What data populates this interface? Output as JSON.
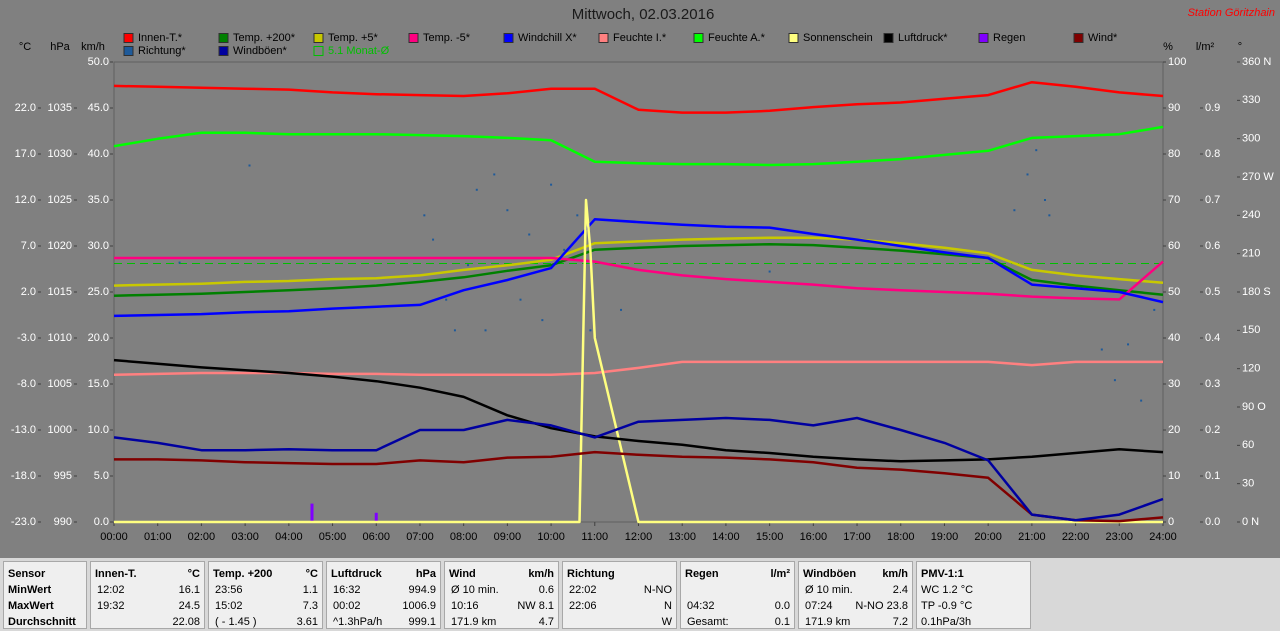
{
  "chart_data": {
    "type": "line",
    "title": "Mittwoch, 02.03.2016",
    "station": "Station Göritzhain",
    "xlim": [
      0,
      24
    ],
    "xticks": [
      {
        "value": 0,
        "label": "00:00"
      },
      {
        "value": 1,
        "label": "01:00"
      },
      {
        "value": 2,
        "label": "02:00"
      },
      {
        "value": 3,
        "label": "03:00"
      },
      {
        "value": 4,
        "label": "04:00"
      },
      {
        "value": 5,
        "label": "05:00"
      },
      {
        "value": 6,
        "label": "06:00"
      },
      {
        "value": 7,
        "label": "07:00"
      },
      {
        "value": 8,
        "label": "08:00"
      },
      {
        "value": 9,
        "label": "09:00"
      },
      {
        "value": 10,
        "label": "10:00"
      },
      {
        "value": 11,
        "label": "11:00"
      },
      {
        "value": 12,
        "label": "12:00"
      },
      {
        "value": 13,
        "label": "13:00"
      },
      {
        "value": 14,
        "label": "14:00"
      },
      {
        "value": 15,
        "label": "15:00"
      },
      {
        "value": 16,
        "label": "16:00"
      },
      {
        "value": 17,
        "label": "17:00"
      },
      {
        "value": 18,
        "label": "18:00"
      },
      {
        "value": 19,
        "label": "19:00"
      },
      {
        "value": 20,
        "label": "20:00"
      },
      {
        "value": 21,
        "label": "21:00"
      },
      {
        "value": 22,
        "label": "22:00"
      },
      {
        "value": 23,
        "label": "23:00"
      },
      {
        "value": 24,
        "label": "24:00"
      }
    ],
    "axes": {
      "temp": {
        "label": "°C",
        "ylim": [
          -23,
          27
        ],
        "yticks": [
          {
            "value": -23,
            "label": "-23.0"
          },
          {
            "value": -18,
            "label": "-18.0"
          },
          {
            "value": -13,
            "label": "-13.0"
          },
          {
            "value": -8,
            "label": "-8.0"
          },
          {
            "value": -3,
            "label": "-3.0"
          },
          {
            "value": 2,
            "label": "2.0"
          },
          {
            "value": 7,
            "label": "7.0"
          },
          {
            "value": 12,
            "label": "12.0"
          },
          {
            "value": 17,
            "label": "17.0"
          },
          {
            "value": 22,
            "label": "22.0"
          }
        ]
      },
      "hpa": {
        "label": "hPa",
        "ylim": [
          990,
          1040
        ],
        "yticks": [
          990,
          995,
          1000,
          1005,
          1010,
          1015,
          1020,
          1025,
          1030,
          1035
        ]
      },
      "kmh": {
        "label": "km/h",
        "ylim": [
          0,
          50
        ],
        "yticks": [
          {
            "value": 0,
            "label": "0.0"
          },
          {
            "value": 5,
            "label": "5.0"
          },
          {
            "value": 10,
            "label": "10.0"
          },
          {
            "value": 15,
            "label": "15.0"
          },
          {
            "value": 20,
            "label": "20.0"
          },
          {
            "value": 25,
            "label": "25.0"
          },
          {
            "value": 30,
            "label": "30.0"
          },
          {
            "value": 35,
            "label": "35.0"
          },
          {
            "value": 40,
            "label": "40.0"
          },
          {
            "value": 45,
            "label": "45.0"
          },
          {
            "value": 50,
            "label": "50.0"
          }
        ]
      },
      "pct": {
        "label": "%",
        "ylim": [
          0,
          100
        ],
        "yticks": [
          0,
          10,
          20,
          30,
          40,
          50,
          60,
          70,
          80,
          90,
          100
        ]
      },
      "rain": {
        "label": "l/m²",
        "ylim": [
          0,
          1
        ],
        "yticks": [
          {
            "value": 0,
            "label": "0.0"
          },
          {
            "value": 0.1,
            "label": "0.1"
          },
          {
            "value": 0.2,
            "label": "0.2"
          },
          {
            "value": 0.3,
            "label": "0.3"
          },
          {
            "value": 0.4,
            "label": "0.4"
          },
          {
            "value": 0.5,
            "label": "0.5"
          },
          {
            "value": 0.6,
            "label": "0.6"
          },
          {
            "value": 0.7,
            "label": "0.7"
          },
          {
            "value": 0.8,
            "label": "0.8"
          },
          {
            "value": 0.9,
            "label": "0.9"
          }
        ]
      },
      "deg": {
        "label": "°",
        "ylim": [
          0,
          360
        ],
        "yticks": [
          {
            "value": 0,
            "label": "0 N"
          },
          30,
          60,
          {
            "value": 90,
            "label": "90 O"
          },
          120,
          150,
          {
            "value": 180,
            "label": "180 S"
          },
          210,
          240,
          {
            "value": 270,
            "label": "270 W"
          },
          300,
          330,
          {
            "value": 360,
            "label": "360 N"
          }
        ]
      }
    },
    "x": [
      0,
      1,
      2,
      3,
      4,
      5,
      6,
      7,
      8,
      9,
      10,
      11,
      12,
      13,
      14,
      15,
      16,
      17,
      18,
      19,
      20,
      21,
      22,
      23,
      24
    ],
    "series": [
      {
        "name": "Innen-T.*",
        "color": "#ff0000",
        "axis": "temp",
        "style": "line",
        "values": [
          24.4,
          24.3,
          24.2,
          24.1,
          24.0,
          23.7,
          23.5,
          23.4,
          23.3,
          23.6,
          24.1,
          24.1,
          21.8,
          21.5,
          21.5,
          21.7,
          22.1,
          22.4,
          22.6,
          23.0,
          23.4,
          24.8,
          24.3,
          23.7,
          23.3
        ]
      },
      {
        "name": "Temp. +200*",
        "color": "#008000",
        "axis": "temp",
        "style": "line",
        "values": [
          1.6,
          1.7,
          1.8,
          2.0,
          2.2,
          2.4,
          2.7,
          3.1,
          3.6,
          4.3,
          4.9,
          6.6,
          6.8,
          7.0,
          7.1,
          7.2,
          7.1,
          6.8,
          6.5,
          6.1,
          5.7,
          3.3,
          2.7,
          2.2,
          1.7
        ]
      },
      {
        "name": "Temp. +5*",
        "color": "#c8c800",
        "axis": "temp",
        "style": "line",
        "values": [
          2.7,
          2.8,
          2.9,
          3.1,
          3.2,
          3.4,
          3.5,
          3.8,
          4.4,
          4.9,
          5.5,
          7.3,
          7.5,
          7.7,
          7.8,
          7.9,
          7.9,
          7.7,
          7.3,
          6.8,
          6.2,
          4.4,
          3.8,
          3.4,
          3.0
        ]
      },
      {
        "name": "Temp. -5*",
        "color": "#ff0080",
        "axis": "temp",
        "style": "line",
        "values": [
          5.7,
          5.7,
          5.7,
          5.7,
          5.7,
          5.7,
          5.7,
          5.7,
          5.7,
          5.7,
          5.7,
          5.3,
          4.4,
          3.8,
          3.4,
          3.1,
          2.8,
          2.4,
          2.2,
          2.0,
          1.8,
          1.5,
          1.3,
          1.2,
          5.3
        ]
      },
      {
        "name": "Windchill X*",
        "color": "#0000ff",
        "axis": "temp",
        "style": "line",
        "values": [
          -0.6,
          -0.5,
          -0.4,
          -0.2,
          -0.1,
          0.2,
          0.4,
          0.6,
          2.2,
          3.3,
          4.6,
          9.9,
          9.6,
          9.3,
          9.1,
          9.0,
          8.3,
          7.7,
          7.0,
          6.3,
          5.7,
          2.8,
          2.4,
          2.0,
          0.9
        ]
      },
      {
        "name": "Feuchte I.*",
        "color": "#ff8080",
        "axis": "pct",
        "style": "line",
        "values": [
          32.0,
          32.2,
          32.4,
          32.4,
          32.4,
          32.2,
          32.2,
          32.0,
          32.0,
          32.0,
          32.0,
          32.4,
          33.5,
          34.8,
          34.8,
          34.8,
          34.8,
          34.8,
          34.8,
          34.8,
          34.8,
          34.1,
          34.8,
          34.8,
          34.8
        ]
      },
      {
        "name": "Feuchte A.*",
        "color": "#00ff00",
        "axis": "pct",
        "style": "line",
        "values": [
          81.7,
          83.3,
          84.6,
          84.6,
          84.3,
          84.3,
          84.3,
          84.1,
          83.9,
          83.5,
          83.0,
          78.3,
          78.0,
          77.8,
          77.8,
          77.6,
          77.8,
          78.3,
          78.9,
          79.8,
          80.7,
          83.5,
          83.9,
          84.3,
          85.9
        ]
      },
      {
        "name": "Sonnenschein",
        "color": "#ffff80",
        "axis": "pct",
        "style": "line",
        "x": [
          0,
          10.65,
          10.8,
          10.9,
          11.0,
          12.0,
          24
        ],
        "values": [
          0,
          0,
          70,
          59,
          40,
          0,
          0
        ]
      },
      {
        "name": "Luftdruck*",
        "color": "#000000",
        "axis": "hpa",
        "style": "line",
        "values": [
          1007.6,
          1007.2,
          1006.8,
          1006.5,
          1006.2,
          1005.8,
          1005.3,
          1004.6,
          1003.6,
          1001.6,
          1000.2,
          999.3,
          998.8,
          998.4,
          997.8,
          997.5,
          997.1,
          996.8,
          996.6,
          996.7,
          996.8,
          997.1,
          997.5,
          997.9,
          997.6
        ]
      },
      {
        "name": "Regen",
        "color": "#8000ff",
        "axis": "rain",
        "style": "bar",
        "x": [
          4.53,
          6.0
        ],
        "values": [
          0.04,
          0.02
        ]
      },
      {
        "name": "Wind*",
        "color": "#800000",
        "axis": "kmh",
        "style": "line",
        "values": [
          6.8,
          6.8,
          6.7,
          6.5,
          6.4,
          6.3,
          6.3,
          6.7,
          6.5,
          7.0,
          7.1,
          7.6,
          7.3,
          7.1,
          7.0,
          6.8,
          6.5,
          5.9,
          5.7,
          5.3,
          4.8,
          0.8,
          0.2,
          0.1,
          0.5
        ]
      },
      {
        "name": "Richtung*",
        "color": "#1e5a9a",
        "axis": "deg",
        "style": "scatter",
        "x": [
          1.5,
          3.1,
          7.1,
          7.3,
          7.6,
          7.8,
          8.1,
          8.3,
          8.5,
          8.7,
          9.0,
          9.3,
          9.5,
          9.8,
          10.0,
          10.3,
          10.6,
          10.9,
          11.6,
          15.0,
          20.6,
          20.9,
          21.1,
          21.3,
          21.4,
          22.6,
          22.9,
          23.2,
          23.5,
          23.8
        ],
        "values": [
          203,
          279,
          240,
          221,
          174,
          150,
          201,
          260,
          150,
          272,
          244,
          174,
          225,
          158,
          264,
          213,
          240,
          150,
          166,
          196,
          244,
          272,
          291,
          252,
          240,
          135,
          111,
          139,
          95,
          166
        ]
      },
      {
        "name": "Windböen*",
        "color": "#0000a0",
        "axis": "kmh",
        "style": "line",
        "values": [
          9.2,
          8.6,
          7.8,
          7.8,
          7.9,
          7.8,
          7.8,
          10.0,
          10.0,
          11.1,
          10.5,
          9.2,
          10.9,
          11.1,
          11.3,
          11.1,
          10.5,
          11.3,
          10.0,
          8.6,
          6.7,
          0.8,
          0.2,
          0.8,
          2.5
        ]
      }
    ],
    "reference_lines": [
      {
        "name": "5.1 Monat-Ø",
        "value": 5.1,
        "axis": "temp",
        "color": "#00c000"
      }
    ]
  },
  "stats": {
    "row_labels": [
      "Sensor",
      "MinWert",
      "MaxWert",
      "Durchschnitt"
    ],
    "groups": [
      {
        "header": [
          "Innen-T.",
          "°C"
        ],
        "rows": [
          [
            "12:02",
            "16.1"
          ],
          [
            "19:32",
            "24.5"
          ],
          [
            null,
            "22.08"
          ]
        ]
      },
      {
        "header": [
          "Temp. +200",
          "°C"
        ],
        "rows": [
          [
            "23:56",
            "1.1"
          ],
          [
            "15:02",
            "7.3"
          ],
          [
            "( - 1.45 )",
            "3.61"
          ]
        ]
      },
      {
        "header": [
          "Luftdruck",
          "hPa"
        ],
        "rows": [
          [
            "16:32",
            "994.9"
          ],
          [
            "00:02",
            "1006.9"
          ],
          [
            "^1.3hPa/h",
            "999.1"
          ]
        ]
      },
      {
        "header": [
          "Wind",
          "km/h"
        ],
        "rows": [
          [
            "Ø 10 min.",
            "0.6"
          ],
          [
            "10:16",
            "NW 8.1"
          ],
          [
            "171.9 km",
            "4.7"
          ]
        ]
      },
      {
        "header": [
          "Richtung"
        ],
        "rows": [
          [
            "22:02",
            "N-NO"
          ],
          [
            "22:06",
            "N"
          ],
          [
            null,
            "W"
          ]
        ]
      },
      {
        "header": [
          "Regen",
          "l/m²"
        ],
        "rows": [
          [],
          [
            "04:32",
            "0.0"
          ],
          [
            "Gesamt:",
            "0.1"
          ]
        ]
      },
      {
        "header": [
          "Windböen",
          "km/h"
        ],
        "rows": [
          [
            "Ø 10 min.",
            "2.4"
          ],
          [
            "07:24",
            "N-NO 23.8"
          ],
          [
            "171.9 km",
            "7.2"
          ]
        ]
      },
      {
        "header": [
          "PMV-1:1"
        ],
        "rows": [
          [
            "WC 1.2 °C"
          ],
          [
            "TP -0.9 °C"
          ],
          [
            "0.1hPa/3h"
          ]
        ]
      }
    ]
  }
}
